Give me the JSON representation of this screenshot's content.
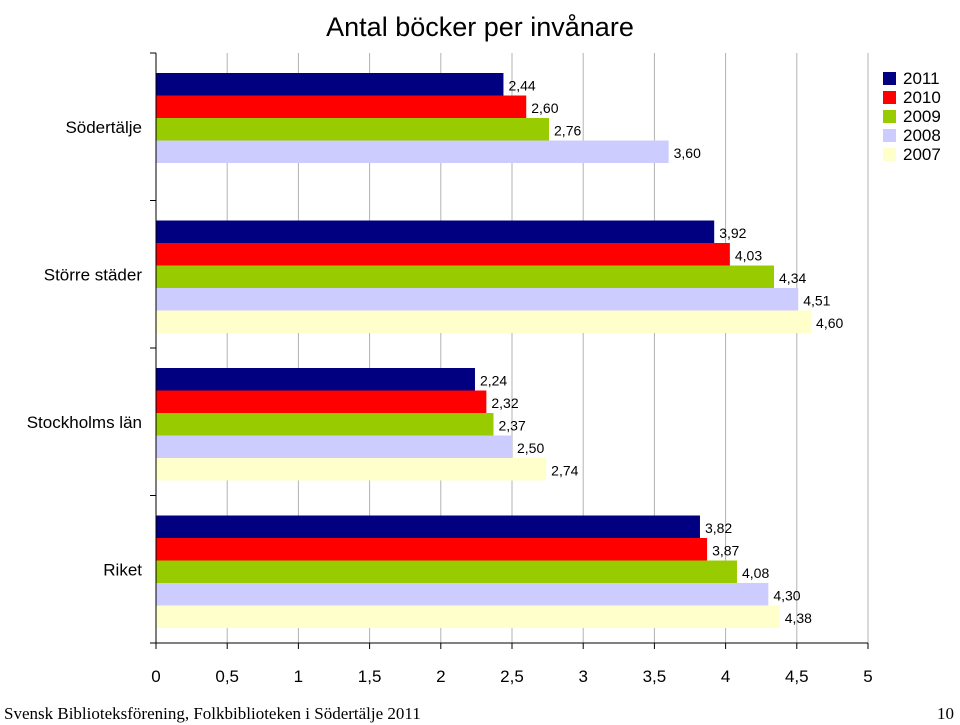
{
  "chart_data": {
    "type": "bar",
    "orientation": "horizontal",
    "title": "Antal böcker per invånare",
    "categories": [
      "Södertälje",
      "Större städer",
      "Stockholms län",
      "Riket"
    ],
    "series": [
      {
        "name": "2011",
        "color": "#000080",
        "values": [
          2.44,
          3.92,
          2.24,
          3.82
        ]
      },
      {
        "name": "2010",
        "color": "#FF0000",
        "values": [
          2.6,
          4.03,
          2.32,
          3.87
        ]
      },
      {
        "name": "2009",
        "color": "#99CC00",
        "values": [
          2.76,
          4.34,
          2.37,
          4.08
        ]
      },
      {
        "name": "2008",
        "color": "#CCCCFF",
        "values": [
          3.6,
          4.51,
          2.5,
          4.3
        ]
      },
      {
        "name": "2007",
        "color": "#FFFFCC",
        "values": [
          null,
          4.6,
          2.74,
          4.38
        ]
      }
    ],
    "data_labels": [
      [
        "2,44",
        "2,60",
        "2,76",
        "3,60",
        ""
      ],
      [
        "3,92",
        "4,03",
        "4,34",
        "4,51",
        "4,60"
      ],
      [
        "2,24",
        "2,32",
        "2,37",
        "2,50",
        "2,74"
      ],
      [
        "3,82",
        "3,87",
        "4,08",
        "4,30",
        "4,38"
      ]
    ],
    "x_ticks": [
      0,
      0.5,
      1,
      1.5,
      2,
      2.5,
      3,
      3.5,
      4,
      4.5,
      5
    ],
    "x_tick_labels": [
      "0",
      "0,5",
      "1",
      "1,5",
      "2",
      "2,5",
      "3",
      "3,5",
      "4",
      "4,5",
      "5"
    ],
    "xlim": [
      0,
      5
    ],
    "xlabel": "",
    "ylabel": "",
    "grid": true,
    "legend_position": "top-right"
  },
  "footer": {
    "left": "Svensk Biblioteksförening, Folkbiblioteken i Södertälje 2011",
    "page": "10"
  }
}
